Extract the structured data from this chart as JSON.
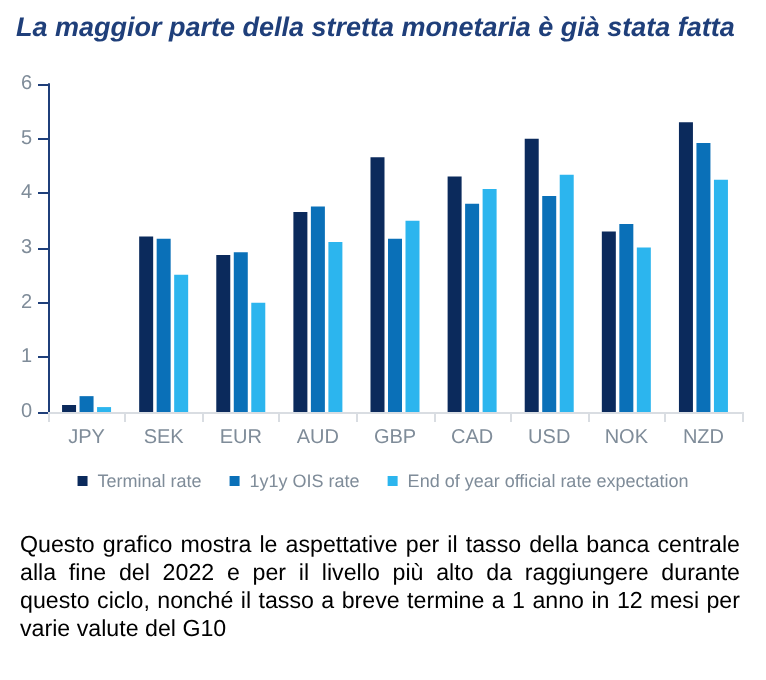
{
  "chart_data": {
    "type": "bar",
    "title": "La maggior parte della stretta monetaria è già stata fatta",
    "categories": [
      "JPY",
      "SEK",
      "EUR",
      "AUD",
      "GBP",
      "CAD",
      "USD",
      "NOK",
      "NZD"
    ],
    "series": [
      {
        "name": "Terminal rate",
        "color": "#0b2a5c",
        "values": [
          0.13,
          3.21,
          2.87,
          3.66,
          4.66,
          4.31,
          5.0,
          3.3,
          5.3
        ]
      },
      {
        "name": "1y1y OIS rate",
        "color": "#0a70b8",
        "values": [
          0.29,
          3.17,
          2.92,
          3.76,
          3.17,
          3.81,
          3.95,
          3.44,
          4.92
        ]
      },
      {
        "name": "End of year official rate expectation",
        "color": "#2cb5ee",
        "values": [
          0.09,
          2.51,
          2.0,
          3.11,
          3.5,
          4.08,
          4.34,
          3.01,
          4.25
        ]
      }
    ],
    "ylim": [
      0,
      6
    ],
    "yticks": [
      0,
      1,
      2,
      3,
      4,
      5,
      6
    ],
    "grid": false,
    "legend": "bottom",
    "annotations": [
      "Questo grafico mostra le aspettative per il tasso della banca centrale alla fine del 2022 e per il livello più alto da raggiungere durante questo ciclo, nonché il tasso a breve termine a 1 anno in 12 mesi per varie valute del G10"
    ]
  }
}
